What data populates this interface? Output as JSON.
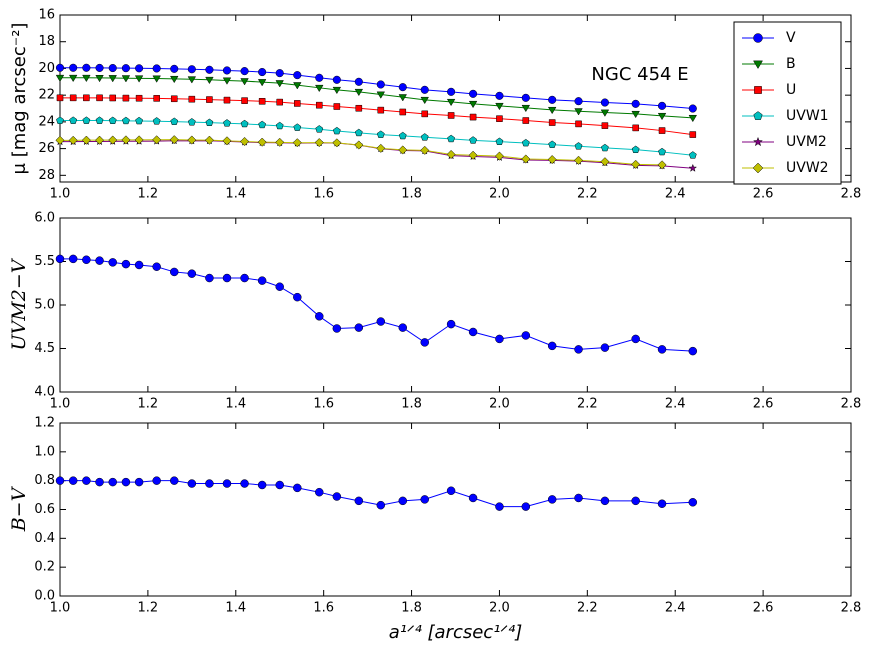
{
  "chart_data": [
    {
      "type": "line",
      "annotation": "NGC 454 E",
      "ylabel": "μ [mag arcsec⁻²]",
      "legend": "upper right",
      "grid": false,
      "x": [
        1.0,
        1.03,
        1.06,
        1.09,
        1.12,
        1.15,
        1.18,
        1.22,
        1.26,
        1.3,
        1.34,
        1.38,
        1.42,
        1.46,
        1.5,
        1.54,
        1.59,
        1.63,
        1.68,
        1.73,
        1.78,
        1.83,
        1.89,
        1.94,
        2.0,
        2.06,
        2.12,
        2.18,
        2.24,
        2.31,
        2.37,
        2.44
      ],
      "xlim": [
        1.0,
        2.8
      ],
      "xticks": [
        {
          "value": 1.0,
          "label": "1.0"
        },
        1.2,
        1.4,
        1.6,
        1.8,
        {
          "value": 2.0,
          "label": "2.0"
        },
        2.2,
        2.4,
        2.6,
        2.8
      ],
      "ylim": [
        28.5,
        16
      ],
      "yticks": [
        16,
        18,
        20,
        22,
        24,
        26,
        28
      ],
      "series": [
        {
          "name": "V",
          "color": "#0000ff",
          "marker": "circle",
          "values": [
            19.95,
            19.95,
            19.95,
            19.96,
            19.97,
            19.98,
            19.99,
            20.0,
            20.03,
            20.06,
            20.1,
            20.15,
            20.2,
            20.27,
            20.35,
            20.5,
            20.7,
            20.85,
            21.0,
            21.2,
            21.4,
            21.6,
            21.75,
            21.9,
            22.05,
            22.2,
            22.35,
            22.45,
            22.55,
            22.65,
            22.8,
            23.0
          ]
        },
        {
          "name": "B",
          "color": "#007a00",
          "marker": "triangle-down",
          "values": [
            20.7,
            20.7,
            20.7,
            20.71,
            20.72,
            20.73,
            20.74,
            20.75,
            20.78,
            20.81,
            20.85,
            20.9,
            20.95,
            21.02,
            21.1,
            21.25,
            21.45,
            21.6,
            21.75,
            21.95,
            22.15,
            22.35,
            22.5,
            22.65,
            22.8,
            22.95,
            23.1,
            23.2,
            23.3,
            23.4,
            23.55,
            23.7
          ]
        },
        {
          "name": "U",
          "color": "#ff0000",
          "marker": "square",
          "values": [
            22.2,
            22.2,
            22.2,
            22.2,
            22.21,
            22.22,
            22.23,
            22.24,
            22.27,
            22.3,
            22.33,
            22.37,
            22.41,
            22.46,
            22.52,
            22.62,
            22.75,
            22.85,
            22.98,
            23.12,
            23.26,
            23.4,
            23.52,
            23.64,
            23.76,
            23.9,
            24.05,
            24.15,
            24.28,
            24.45,
            24.65,
            24.95
          ]
        },
        {
          "name": "UVW1",
          "color": "#00bfbf",
          "marker": "pentagon",
          "values": [
            23.9,
            23.9,
            23.9,
            23.9,
            23.91,
            23.92,
            23.93,
            23.95,
            23.98,
            24.02,
            24.06,
            24.1,
            24.15,
            24.22,
            24.3,
            24.42,
            24.55,
            24.68,
            24.82,
            24.95,
            25.05,
            25.15,
            25.27,
            25.38,
            25.48,
            25.58,
            25.7,
            25.82,
            25.95,
            26.08,
            26.25,
            26.5
          ]
        },
        {
          "name": "UVM2",
          "color": "#800080",
          "marker": "star",
          "values": [
            25.48,
            25.48,
            25.47,
            25.47,
            25.46,
            25.45,
            25.45,
            25.44,
            25.41,
            25.42,
            25.41,
            25.46,
            25.51,
            25.55,
            25.56,
            25.59,
            25.57,
            25.58,
            25.74,
            26.01,
            26.14,
            26.17,
            26.53,
            26.59,
            26.66,
            26.85,
            26.88,
            26.94,
            27.06,
            27.26,
            27.29,
            27.47
          ]
        },
        {
          "name": "UVW2",
          "color": "#bfbf00",
          "marker": "diamond",
          "values": [
            25.38,
            25.38,
            25.37,
            25.37,
            25.36,
            25.35,
            25.35,
            25.34,
            25.33,
            25.36,
            25.37,
            25.42,
            25.47,
            25.52,
            25.53,
            25.56,
            25.55,
            25.57,
            25.73,
            25.98,
            26.1,
            26.13,
            26.44,
            26.5,
            26.56,
            26.78,
            26.82,
            26.88,
            26.98,
            27.18,
            27.22,
            null
          ]
        }
      ]
    },
    {
      "type": "line",
      "ylabel": "UVM2−V",
      "grid": false,
      "x": [
        1.0,
        1.03,
        1.06,
        1.09,
        1.12,
        1.15,
        1.18,
        1.22,
        1.26,
        1.3,
        1.34,
        1.38,
        1.42,
        1.46,
        1.5,
        1.54,
        1.59,
        1.63,
        1.68,
        1.73,
        1.78,
        1.83,
        1.89,
        1.94,
        2.0,
        2.06,
        2.12,
        2.18,
        2.24,
        2.31,
        2.37,
        2.44
      ],
      "xlim": [
        1.0,
        2.8
      ],
      "xticks": [
        {
          "value": 1.0,
          "label": "1.0"
        },
        1.2,
        1.4,
        1.6,
        1.8,
        {
          "value": 2.0,
          "label": "2.0"
        },
        2.2,
        2.4,
        2.6,
        2.8
      ],
      "ylim": [
        4.0,
        6.0
      ],
      "yticks": [
        {
          "value": 4.0,
          "label": "4.0"
        },
        4.5,
        {
          "value": 5.0,
          "label": "5.0"
        },
        5.5,
        {
          "value": 6.0,
          "label": "6.0"
        }
      ],
      "series": [
        {
          "name": "UVM2−V",
          "color": "#0000ff",
          "marker": "circle",
          "values": [
            5.53,
            5.53,
            5.52,
            5.51,
            5.49,
            5.47,
            5.46,
            5.44,
            5.38,
            5.36,
            5.31,
            5.31,
            5.31,
            5.28,
            5.21,
            5.09,
            4.87,
            4.73,
            4.74,
            4.81,
            4.74,
            4.57,
            4.78,
            4.69,
            4.61,
            4.65,
            4.53,
            4.49,
            4.51,
            4.61,
            4.49,
            4.47
          ]
        }
      ]
    },
    {
      "type": "line",
      "ylabel": "B−V",
      "xlabel": "a¹ᐟ⁴ [arcsec¹ᐟ⁴]",
      "grid": false,
      "x": [
        1.0,
        1.03,
        1.06,
        1.09,
        1.12,
        1.15,
        1.18,
        1.22,
        1.26,
        1.3,
        1.34,
        1.38,
        1.42,
        1.46,
        1.5,
        1.54,
        1.59,
        1.63,
        1.68,
        1.73,
        1.78,
        1.83,
        1.89,
        1.94,
        2.0,
        2.06,
        2.12,
        2.18,
        2.24,
        2.31,
        2.37,
        2.44
      ],
      "xlim": [
        1.0,
        2.8
      ],
      "xticks": [
        {
          "value": 1.0,
          "label": "1.0"
        },
        1.2,
        1.4,
        1.6,
        1.8,
        {
          "value": 2.0,
          "label": "2.0"
        },
        2.2,
        2.4,
        2.6,
        2.8
      ],
      "ylim": [
        0.0,
        1.2
      ],
      "yticks": [
        {
          "value": 0.0,
          "label": "0.0"
        },
        0.2,
        0.4,
        0.6,
        0.8,
        {
          "value": 1.0,
          "label": "1.0"
        },
        1.2
      ],
      "series": [
        {
          "name": "B−V",
          "color": "#0000ff",
          "marker": "circle",
          "values": [
            0.8,
            0.8,
            0.8,
            0.79,
            0.79,
            0.79,
            0.79,
            0.8,
            0.8,
            0.78,
            0.78,
            0.78,
            0.78,
            0.77,
            0.77,
            0.75,
            0.72,
            0.69,
            0.66,
            0.63,
            0.66,
            0.67,
            0.73,
            0.68,
            0.62,
            0.62,
            0.67,
            0.68,
            0.66,
            0.66,
            0.64,
            0.65
          ]
        }
      ]
    }
  ]
}
